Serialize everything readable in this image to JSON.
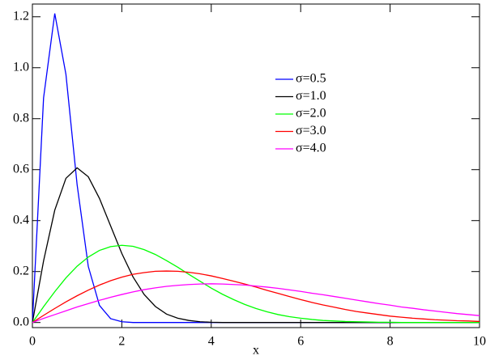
{
  "chart_data": {
    "type": "line",
    "x_label": "x",
    "x": [
      0,
      0.25,
      0.5,
      0.75,
      1,
      1.25,
      1.5,
      1.75,
      2,
      2.25,
      2.5,
      2.75,
      3,
      3.25,
      3.5,
      3.75,
      4,
      4.25,
      4.5,
      4.75,
      5,
      5.25,
      5.5,
      5.75,
      6,
      6.25,
      6.5,
      6.75,
      7,
      7.25,
      7.5,
      7.75,
      8,
      8.25,
      8.5,
      8.75,
      9,
      9.25,
      9.5,
      9.75,
      10
    ],
    "series": [
      {
        "name": "σ=0.5",
        "color": "#0000ff",
        "values": [
          0,
          0.882,
          1.213,
          0.974,
          0.541,
          0.22,
          0.067,
          0.015,
          0.003,
          0,
          0,
          0,
          0,
          0,
          0,
          0,
          0,
          0,
          0,
          0,
          0,
          0,
          0,
          0,
          0,
          0,
          0,
          0,
          0,
          0,
          0,
          0,
          0,
          0,
          0,
          0,
          0,
          0,
          0,
          0,
          0
        ]
      },
      {
        "name": "σ=1.0",
        "color": "#000000",
        "values": [
          0,
          0.242,
          0.441,
          0.566,
          0.607,
          0.572,
          0.487,
          0.379,
          0.271,
          0.179,
          0.11,
          0.063,
          0.033,
          0.017,
          0.008,
          0.003,
          0.001,
          0,
          0,
          0,
          0,
          0,
          0,
          0,
          0,
          0,
          0,
          0,
          0,
          0,
          0,
          0,
          0,
          0,
          0,
          0,
          0,
          0,
          0,
          0,
          0
        ]
      },
      {
        "name": "σ=2.0",
        "color": "#00ff00",
        "values": [
          0,
          0.062,
          0.121,
          0.175,
          0.221,
          0.257,
          0.283,
          0.298,
          0.303,
          0.299,
          0.286,
          0.267,
          0.243,
          0.217,
          0.189,
          0.162,
          0.135,
          0.111,
          0.09,
          0.071,
          0.055,
          0.042,
          0.031,
          0.023,
          0.017,
          0.012,
          0.008,
          0.006,
          0.004,
          0.003,
          0.002,
          0.001,
          0.001,
          0,
          0,
          0,
          0,
          0,
          0,
          0,
          0
        ]
      },
      {
        "name": "σ=3.0",
        "color": "#ff0000",
        "values": [
          0,
          0.028,
          0.055,
          0.081,
          0.105,
          0.127,
          0.147,
          0.164,
          0.178,
          0.189,
          0.196,
          0.201,
          0.202,
          0.201,
          0.197,
          0.191,
          0.183,
          0.173,
          0.162,
          0.151,
          0.139,
          0.126,
          0.114,
          0.102,
          0.09,
          0.079,
          0.069,
          0.06,
          0.051,
          0.043,
          0.037,
          0.031,
          0.025,
          0.021,
          0.017,
          0.014,
          0.011,
          0.009,
          0.007,
          0.006,
          0.004
        ]
      },
      {
        "name": "σ=4.0",
        "color": "#ff00ff",
        "values": [
          0,
          0.016,
          0.031,
          0.046,
          0.061,
          0.074,
          0.087,
          0.099,
          0.11,
          0.12,
          0.129,
          0.136,
          0.142,
          0.146,
          0.149,
          0.151,
          0.152,
          0.151,
          0.149,
          0.147,
          0.143,
          0.139,
          0.134,
          0.128,
          0.122,
          0.115,
          0.109,
          0.102,
          0.095,
          0.088,
          0.081,
          0.074,
          0.068,
          0.061,
          0.056,
          0.05,
          0.045,
          0.04,
          0.035,
          0.031,
          0.027
        ]
      }
    ],
    "xlim": [
      0,
      10
    ],
    "ylim": [
      -0.02,
      1.25
    ],
    "xticks": [
      0,
      2,
      4,
      6,
      8,
      10
    ],
    "yticks": [
      {
        "value": 0,
        "label": "0.0"
      },
      0.2,
      0.4,
      0.6,
      0.8,
      {
        "value": 1,
        "label": "1.0"
      },
      1.2
    ],
    "grid": false,
    "legend_position": "upper-right"
  }
}
